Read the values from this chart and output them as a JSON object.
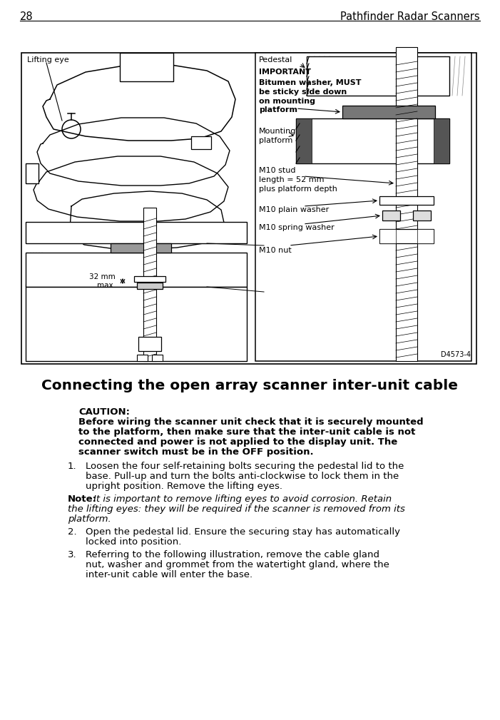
{
  "page_number": "28",
  "page_title": "Pathfinder Radar Scanners",
  "section_title": "Connecting the open array scanner inter-unit cable",
  "caution_label": "CAUTION:",
  "caution_text": "Before wiring the scanner unit check that it is securely mounted\nto the platform, then make sure that the inter-unit cable is not\nconnected and power is not applied to the display unit. The\nscanner switch must be in the OFF position.",
  "item1": "Loosen the four self-retaining bolts securing the pedestal lid to the\nbase. Pull-up and turn the bolts anti-clockwise to lock them in the\nupright position. Remove the lifting eyes.",
  "note_label": "Note:",
  "note_italic": "It is important to remove lifting eyes to avoid corrosion. Retain\nthe lifting eyes: they will be required if the scanner is removed from its\nplatform.",
  "item2": "Open the pedestal lid. Ensure the securing stay has automatically\nlocked into position.",
  "item3": "Referring to the following illustration, remove the cable gland\nnut, washer and grommet from the watertight gland, where the\ninter-unit cable will enter the base.",
  "lbl_lifting_eye": "Lifting eye",
  "lbl_pedestal": "Pedestal",
  "lbl_important": "IMPORTANT",
  "lbl_bitumen": "Bitumen washer, MUST\nbe sticky side down\non mounting\nplatform",
  "lbl_mounting": "Mounting\nplatform",
  "lbl_stud": "M10 stud\nlength = 52 mm\nplus platform depth",
  "lbl_plain": "M10 plain washer",
  "lbl_spring": "M10 spring washer",
  "lbl_nut": "M10 nut",
  "lbl_32mm": "32 mm\nmax.",
  "lbl_id": "D4573-4",
  "bg_color": "#ffffff",
  "text_color": "#000000"
}
